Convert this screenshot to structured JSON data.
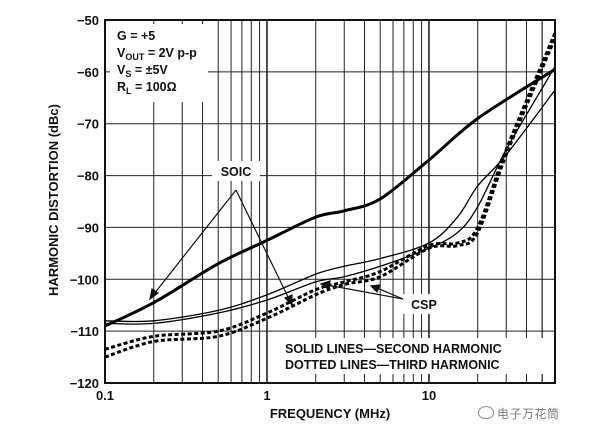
{
  "chart_data": {
    "type": "line",
    "x_scale": "log",
    "xlabel": "FREQUENCY (MHz)",
    "ylabel": "HARMONIC DISTORTION (dBc)",
    "xlim": [
      0.1,
      60
    ],
    "ylim": [
      -120,
      -50
    ],
    "x_ticks": [
      {
        "v": 0.1,
        "label": "0.1"
      },
      {
        "v": 1,
        "label": "1"
      },
      {
        "v": 10,
        "label": "10"
      }
    ],
    "y_ticks": [
      -50,
      -60,
      -70,
      -80,
      -90,
      -100,
      -110,
      -120
    ],
    "grid": true,
    "conditions": {
      "line1": "G = +5",
      "line2_main": "V",
      "line2_sub": "OUT",
      "line2_rest": " = 2V p-p",
      "line3_main": "V",
      "line3_sub": "S",
      "line3_rest": " = ±5V",
      "line4_main": "R",
      "line4_sub": "L",
      "line4_rest": " = 100Ω"
    },
    "annotations": {
      "soic": "SOIC",
      "csp": "CSP"
    },
    "legend": {
      "solid": "SOLID LINES—SECOND HARMONIC",
      "dotted": "DOTTED LINES—THIRD HARMONIC"
    },
    "series": [
      {
        "name": "SOIC Second Harmonic",
        "style": "solid",
        "weight": "heavy",
        "x": [
          0.1,
          0.2,
          0.5,
          1,
          2,
          3,
          5,
          10,
          20,
          60
        ],
        "y": [
          -109,
          -104.5,
          -97,
          -92.5,
          -88,
          -86.8,
          -84.5,
          -77,
          -69,
          -59.5
        ]
      },
      {
        "name": "CSP Second Harmonic",
        "style": "solid",
        "weight": "thin",
        "x": [
          0.1,
          0.2,
          0.5,
          1,
          2,
          3,
          5,
          10,
          15,
          20,
          30,
          60
        ],
        "y": [
          -108,
          -108,
          -106,
          -103,
          -99,
          -97.5,
          -96,
          -93,
          -88,
          -82,
          -76,
          -63.5
        ]
      },
      {
        "name": "SOIC Second Harmonic (lower)",
        "style": "solid",
        "weight": "thin",
        "x": [
          0.1,
          0.2,
          0.5,
          1,
          2,
          3,
          5,
          10,
          15,
          20,
          30,
          60
        ],
        "y": [
          -108.5,
          -108.5,
          -106.5,
          -104,
          -100.5,
          -99.5,
          -97.5,
          -94,
          -91,
          -86,
          -75,
          -59
        ]
      },
      {
        "name": "SOIC Third Harmonic",
        "style": "dotted",
        "weight": "heavy",
        "x": [
          0.1,
          0.2,
          0.5,
          1,
          2,
          3,
          5,
          10,
          15,
          20,
          30,
          60
        ],
        "y": [
          -113.5,
          -111,
          -110,
          -106.5,
          -102,
          -100.5,
          -98.5,
          -93.5,
          -93,
          -90,
          -75,
          -52.5
        ]
      },
      {
        "name": "CSP Third Harmonic",
        "style": "dotted",
        "weight": "heavy",
        "x": [
          0.1,
          0.2,
          0.5,
          1,
          2,
          3,
          5,
          10,
          15,
          20,
          30,
          60
        ],
        "y": [
          -115,
          -112,
          -111,
          -107.5,
          -103,
          -101,
          -99.5,
          -94,
          -93.5,
          -91,
          -76,
          -53.5
        ]
      }
    ]
  },
  "watermark": "电子万花筒"
}
